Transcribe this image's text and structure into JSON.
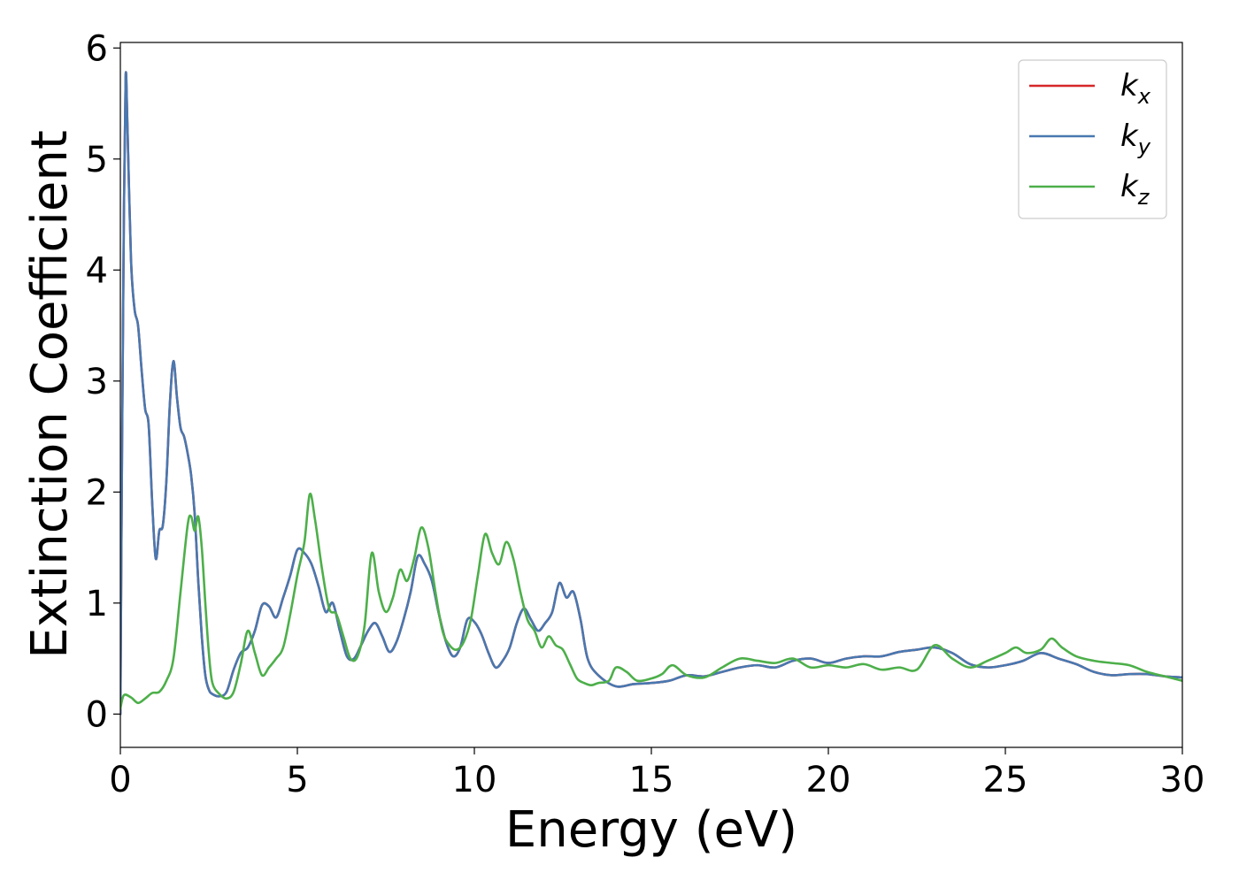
{
  "chart_data": {
    "type": "line",
    "title": "",
    "xlabel": "Energy (eV)",
    "ylabel": "Extinction Coefficient",
    "xlim": [
      0,
      30
    ],
    "ylim": [
      -0.3,
      6.05
    ],
    "xticks": [
      0,
      5,
      10,
      15,
      20,
      25,
      30
    ],
    "xtick_labels": [
      "0",
      "5",
      "10",
      "15",
      "20",
      "25",
      "30"
    ],
    "yticks": [
      0,
      1,
      2,
      3,
      4,
      5,
      6
    ],
    "ytick_labels": [
      "0",
      "1",
      "2",
      "3",
      "4",
      "5",
      "6"
    ],
    "grid": false,
    "legend_position": "top-right",
    "series": [
      {
        "name": "k",
        "subscript": "x",
        "color": "#d62728",
        "x": [
          0,
          0.05,
          0.1,
          0.15,
          0.2,
          0.3,
          0.4,
          0.5,
          0.6,
          0.7,
          0.8,
          0.9,
          1.0,
          1.1,
          1.2,
          1.3,
          1.4,
          1.5,
          1.6,
          1.7,
          1.8,
          1.9,
          2.0,
          2.1,
          2.2,
          2.3,
          2.4,
          2.5,
          2.6,
          2.8,
          3.0,
          3.2,
          3.4,
          3.6,
          3.8,
          4.0,
          4.2,
          4.4,
          4.6,
          4.8,
          5.0,
          5.2,
          5.4,
          5.6,
          5.8,
          6.0,
          6.2,
          6.4,
          6.6,
          6.8,
          7.0,
          7.2,
          7.4,
          7.6,
          7.8,
          8.0,
          8.2,
          8.4,
          8.6,
          8.8,
          9.0,
          9.2,
          9.4,
          9.6,
          9.8,
          10.0,
          10.2,
          10.4,
          10.6,
          10.8,
          11.0,
          11.2,
          11.4,
          11.6,
          11.8,
          12.0,
          12.2,
          12.4,
          12.6,
          12.8,
          13.0,
          13.2,
          13.5,
          14.0,
          14.5,
          15.0,
          15.5,
          16.0,
          16.5,
          17.0,
          17.5,
          18.0,
          18.5,
          19.0,
          19.5,
          20.0,
          20.5,
          21.0,
          21.5,
          22.0,
          22.5,
          23.0,
          23.5,
          24.0,
          24.5,
          25.0,
          25.5,
          26.0,
          26.5,
          27.0,
          27.5,
          28.0,
          28.5,
          29.0,
          29.5,
          30.0
        ],
        "y": [
          0.0,
          2.5,
          4.5,
          5.75,
          5.3,
          4.1,
          3.65,
          3.5,
          3.1,
          2.75,
          2.6,
          1.9,
          1.4,
          1.65,
          1.7,
          2.1,
          2.8,
          3.18,
          2.85,
          2.58,
          2.5,
          2.35,
          2.15,
          1.8,
          1.2,
          0.7,
          0.35,
          0.22,
          0.18,
          0.16,
          0.2,
          0.4,
          0.55,
          0.6,
          0.75,
          0.98,
          0.97,
          0.87,
          1.05,
          1.25,
          1.48,
          1.45,
          1.35,
          1.15,
          0.92,
          1.0,
          0.75,
          0.52,
          0.5,
          0.62,
          0.75,
          0.82,
          0.7,
          0.56,
          0.65,
          0.85,
          1.1,
          1.42,
          1.35,
          1.2,
          0.9,
          0.65,
          0.52,
          0.6,
          0.85,
          0.83,
          0.72,
          0.55,
          0.42,
          0.48,
          0.6,
          0.82,
          0.95,
          0.85,
          0.75,
          0.82,
          0.92,
          1.18,
          1.05,
          1.1,
          0.85,
          0.5,
          0.35,
          0.25,
          0.27,
          0.28,
          0.3,
          0.35,
          0.34,
          0.38,
          0.42,
          0.44,
          0.42,
          0.48,
          0.5,
          0.46,
          0.5,
          0.52,
          0.52,
          0.56,
          0.58,
          0.6,
          0.55,
          0.45,
          0.42,
          0.44,
          0.48,
          0.55,
          0.5,
          0.45,
          0.38,
          0.35,
          0.36,
          0.36,
          0.34,
          0.33
        ]
      },
      {
        "name": "k",
        "subscript": "y",
        "color": "#4878b0",
        "x": [
          0,
          0.05,
          0.1,
          0.15,
          0.2,
          0.3,
          0.4,
          0.5,
          0.6,
          0.7,
          0.8,
          0.9,
          1.0,
          1.1,
          1.2,
          1.3,
          1.4,
          1.5,
          1.6,
          1.7,
          1.8,
          1.9,
          2.0,
          2.1,
          2.2,
          2.3,
          2.4,
          2.5,
          2.6,
          2.8,
          3.0,
          3.2,
          3.4,
          3.6,
          3.8,
          4.0,
          4.2,
          4.4,
          4.6,
          4.8,
          5.0,
          5.2,
          5.4,
          5.6,
          5.8,
          6.0,
          6.2,
          6.4,
          6.6,
          6.8,
          7.0,
          7.2,
          7.4,
          7.6,
          7.8,
          8.0,
          8.2,
          8.4,
          8.6,
          8.8,
          9.0,
          9.2,
          9.4,
          9.6,
          9.8,
          10.0,
          10.2,
          10.4,
          10.6,
          10.8,
          11.0,
          11.2,
          11.4,
          11.6,
          11.8,
          12.0,
          12.2,
          12.4,
          12.6,
          12.8,
          13.0,
          13.2,
          13.5,
          14.0,
          14.5,
          15.0,
          15.5,
          16.0,
          16.5,
          17.0,
          17.5,
          18.0,
          18.5,
          19.0,
          19.5,
          20.0,
          20.5,
          21.0,
          21.5,
          22.0,
          22.5,
          23.0,
          23.5,
          24.0,
          24.5,
          25.0,
          25.5,
          26.0,
          26.5,
          27.0,
          27.5,
          28.0,
          28.5,
          29.0,
          29.5,
          30.0
        ],
        "y": [
          0.0,
          2.5,
          4.5,
          5.75,
          5.3,
          4.1,
          3.65,
          3.5,
          3.1,
          2.75,
          2.6,
          1.9,
          1.4,
          1.65,
          1.7,
          2.1,
          2.8,
          3.18,
          2.85,
          2.58,
          2.5,
          2.35,
          2.15,
          1.8,
          1.2,
          0.7,
          0.35,
          0.22,
          0.18,
          0.16,
          0.2,
          0.4,
          0.55,
          0.6,
          0.75,
          0.98,
          0.97,
          0.87,
          1.05,
          1.25,
          1.48,
          1.45,
          1.35,
          1.15,
          0.92,
          1.0,
          0.75,
          0.52,
          0.5,
          0.62,
          0.75,
          0.82,
          0.7,
          0.56,
          0.65,
          0.85,
          1.1,
          1.42,
          1.35,
          1.2,
          0.9,
          0.65,
          0.52,
          0.6,
          0.85,
          0.83,
          0.72,
          0.55,
          0.42,
          0.48,
          0.6,
          0.82,
          0.95,
          0.85,
          0.75,
          0.82,
          0.92,
          1.18,
          1.05,
          1.1,
          0.85,
          0.5,
          0.35,
          0.25,
          0.27,
          0.28,
          0.3,
          0.35,
          0.34,
          0.38,
          0.42,
          0.44,
          0.42,
          0.48,
          0.5,
          0.46,
          0.5,
          0.52,
          0.52,
          0.56,
          0.58,
          0.6,
          0.55,
          0.45,
          0.42,
          0.44,
          0.48,
          0.55,
          0.5,
          0.45,
          0.38,
          0.35,
          0.36,
          0.36,
          0.34,
          0.33
        ]
      },
      {
        "name": "k",
        "subscript": "z",
        "color": "#4daf4a",
        "x": [
          0,
          0.1,
          0.3,
          0.5,
          0.7,
          0.9,
          1.1,
          1.3,
          1.5,
          1.7,
          1.9,
          2.0,
          2.1,
          2.2,
          2.3,
          2.4,
          2.5,
          2.6,
          2.8,
          3.0,
          3.2,
          3.4,
          3.6,
          3.8,
          4.0,
          4.2,
          4.4,
          4.6,
          4.8,
          5.0,
          5.2,
          5.35,
          5.5,
          5.7,
          5.9,
          6.1,
          6.3,
          6.5,
          6.7,
          6.9,
          7.1,
          7.3,
          7.5,
          7.7,
          7.9,
          8.1,
          8.3,
          8.5,
          8.7,
          8.9,
          9.1,
          9.3,
          9.5,
          9.7,
          9.9,
          10.1,
          10.3,
          10.5,
          10.7,
          10.9,
          11.1,
          11.3,
          11.5,
          11.7,
          11.9,
          12.1,
          12.3,
          12.5,
          12.7,
          12.9,
          13.1,
          13.3,
          13.5,
          13.8,
          14.0,
          14.3,
          14.6,
          15.0,
          15.3,
          15.6,
          16.0,
          16.5,
          17.0,
          17.5,
          18.0,
          18.5,
          19.0,
          19.5,
          20.0,
          20.5,
          21.0,
          21.5,
          22.0,
          22.5,
          23.0,
          23.5,
          24.0,
          24.5,
          25.0,
          25.3,
          25.6,
          26.0,
          26.3,
          26.6,
          27.0,
          27.5,
          28.0,
          28.5,
          29.0,
          29.5,
          30.0
        ],
        "y": [
          0.05,
          0.17,
          0.15,
          0.1,
          0.14,
          0.19,
          0.2,
          0.3,
          0.5,
          1.1,
          1.7,
          1.78,
          1.65,
          1.78,
          1.5,
          1.0,
          0.55,
          0.28,
          0.18,
          0.14,
          0.2,
          0.45,
          0.75,
          0.55,
          0.35,
          0.42,
          0.5,
          0.6,
          0.9,
          1.25,
          1.55,
          1.98,
          1.75,
          1.3,
          0.95,
          0.9,
          0.7,
          0.5,
          0.52,
          0.8,
          1.45,
          1.1,
          0.92,
          1.05,
          1.3,
          1.2,
          1.4,
          1.68,
          1.5,
          1.1,
          0.75,
          0.62,
          0.58,
          0.65,
          0.85,
          1.25,
          1.62,
          1.45,
          1.35,
          1.55,
          1.4,
          1.1,
          0.85,
          0.75,
          0.6,
          0.7,
          0.62,
          0.58,
          0.45,
          0.32,
          0.28,
          0.26,
          0.28,
          0.3,
          0.42,
          0.38,
          0.3,
          0.32,
          0.36,
          0.44,
          0.35,
          0.33,
          0.42,
          0.5,
          0.48,
          0.46,
          0.5,
          0.42,
          0.44,
          0.42,
          0.45,
          0.4,
          0.42,
          0.4,
          0.62,
          0.5,
          0.42,
          0.48,
          0.55,
          0.6,
          0.55,
          0.58,
          0.68,
          0.6,
          0.52,
          0.48,
          0.46,
          0.44,
          0.38,
          0.34,
          0.3
        ]
      }
    ]
  }
}
